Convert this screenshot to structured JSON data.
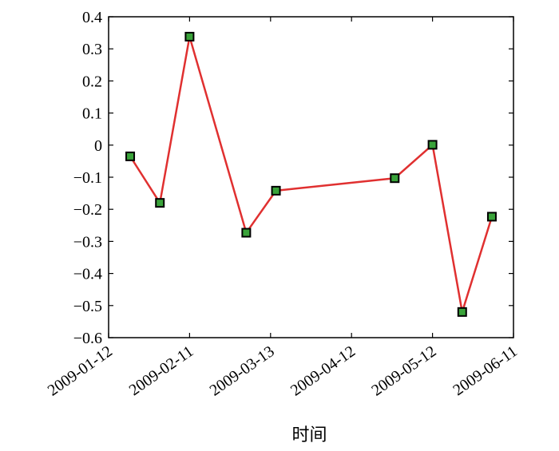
{
  "chart_data": {
    "type": "line",
    "xlabel": "时间",
    "ylabel": "",
    "ylim": [
      -0.6,
      0.4
    ],
    "yticks": [
      0.4,
      0.3,
      0.2,
      0.1,
      0,
      -0.1,
      -0.2,
      -0.3,
      -0.4,
      -0.5,
      -0.6
    ],
    "ytick_labels": [
      "0.4",
      "0.3",
      "0.2",
      "0.1",
      "0",
      "−0.1",
      "−0.2",
      "−0.3",
      "−0.4",
      "−0.5",
      "−0.6"
    ],
    "xlim": [
      "2009-01-12",
      "2009-06-11"
    ],
    "xticks": [
      "2009-01-12",
      "2009-02-11",
      "2009-03-13",
      "2009-04-12",
      "2009-05-12",
      "2009-06-11"
    ],
    "grid": false,
    "line_color": "#e03030",
    "marker_color": "#3aa33a",
    "marker_edge_color": "#000000",
    "series": [
      {
        "x": [
          "2009-01-20",
          "2009-01-31",
          "2009-02-11",
          "2009-03-04",
          "2009-03-15",
          "2009-04-28",
          "2009-05-12",
          "2009-05-23",
          "2009-06-03"
        ],
        "y": [
          -0.035,
          -0.18,
          0.338,
          -0.273,
          -0.142,
          -0.103,
          0.001,
          -0.52,
          -0.223
        ]
      }
    ]
  }
}
